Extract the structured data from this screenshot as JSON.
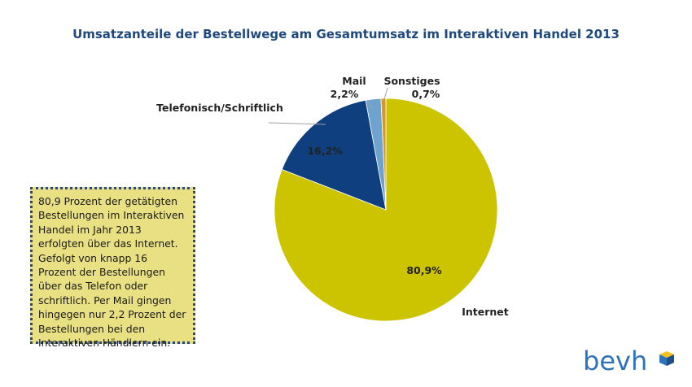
{
  "title": "Umsatzanteile der Bestellwege am Gesamtumsatz im Interaktiven Handel 2013",
  "note": "80,9 Prozent der getätigten Bestellungen im Interaktiven Handel im Jahr 2013 erfolgten über das Internet. Gefolgt von knapp 16 Prozent der Bestellungen über das Telefon oder schriftlich. Per Mail gingen hingegen nur 2,2 Prozent der Bestellungen bei den Interaktiven Händlern ein.",
  "logo": {
    "text": "bevh",
    "colors": {
      "text": "#2e73b8",
      "cube_top": "#f2c21b",
      "cube_left": "#2e73b8",
      "cube_right": "#1e4f86"
    }
  },
  "chart_data": {
    "type": "pie",
    "title": "Umsatzanteile der Bestellwege am Gesamtumsatz im Interaktiven Handel 2013",
    "slices": [
      {
        "name": "Internet",
        "value": 80.9,
        "value_label": "80,9%",
        "color": "#cdc400"
      },
      {
        "name": "Telefonisch/Schriftlich",
        "value": 16.2,
        "value_label": "16,2%",
        "color": "#0f3f7e"
      },
      {
        "name": "Mail",
        "value": 2.2,
        "value_label": "2,2%",
        "color": "#6ea3cf"
      },
      {
        "name": "Sonstiges",
        "value": 0.7,
        "value_label": "0,7%",
        "color": "#d6972c"
      }
    ],
    "start": "12 o'clock",
    "direction": "clockwise",
    "legend": "none"
  }
}
